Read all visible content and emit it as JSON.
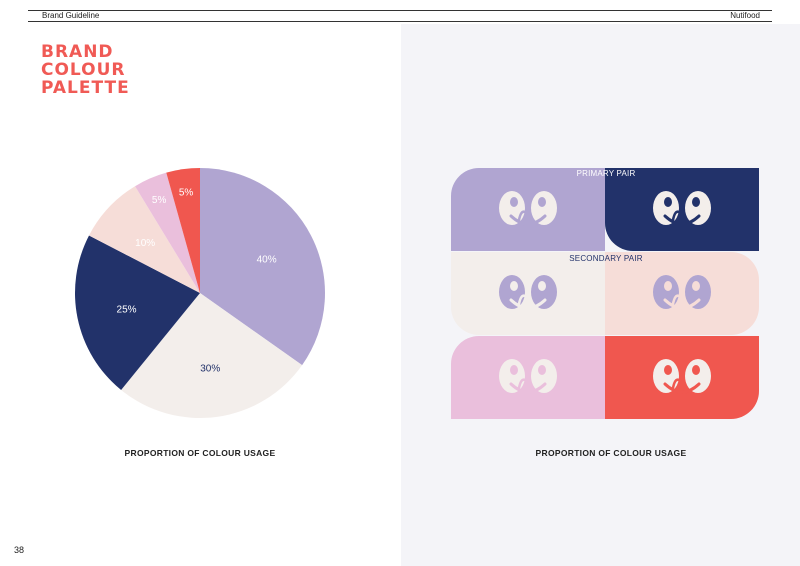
{
  "header": {
    "left": "Brand Guideline",
    "right": "Nutifood"
  },
  "title": {
    "line1": "BRAND",
    "line2": "COLOUR",
    "line3": "PALETTE"
  },
  "page_number": "38",
  "chart_data": {
    "type": "pie",
    "title": "",
    "caption": "PROPORTION OF COLOUR USAGE",
    "start": "12 o'clock, clockwise",
    "slices": [
      {
        "label": "40%",
        "value": 40,
        "color": "#b0a5d1",
        "text_color": "#ffffff"
      },
      {
        "label": "30%",
        "value": 30,
        "color": "#f3eeeb",
        "text_color": "#22326a"
      },
      {
        "label": "25%",
        "value": 25,
        "color": "#22326a",
        "text_color": "#ffffff"
      },
      {
        "label": "10%",
        "value": 10,
        "color": "#f6ddd8",
        "text_color": "#ffffff"
      },
      {
        "label": "5%",
        "value": 5,
        "color": "#eabfdc",
        "text_color": "#ffffff"
      },
      {
        "label": "5%",
        "value": 5,
        "color": "#f0574f",
        "text_color": "#ffffff"
      }
    ]
  },
  "pairs": {
    "caption": "PROPORTION OF COLOUR USAGE",
    "primary_label": "PRIMARY PAIR",
    "secondary_label": "SECONDARY PAIR",
    "tiles": [
      {
        "bg": "#b0a5d1",
        "face": "#f3eeeb"
      },
      {
        "bg": "#22326a",
        "face": "#f3eeeb"
      },
      {
        "bg": "#f3eeeb",
        "face": "#b0a5d1"
      },
      {
        "bg": "#f6ddd8",
        "face": "#b0a5d1"
      },
      {
        "bg": "#eabfdc",
        "face": "#f3eeeb"
      },
      {
        "bg": "#f0574f",
        "face": "#f3eeeb"
      }
    ]
  }
}
